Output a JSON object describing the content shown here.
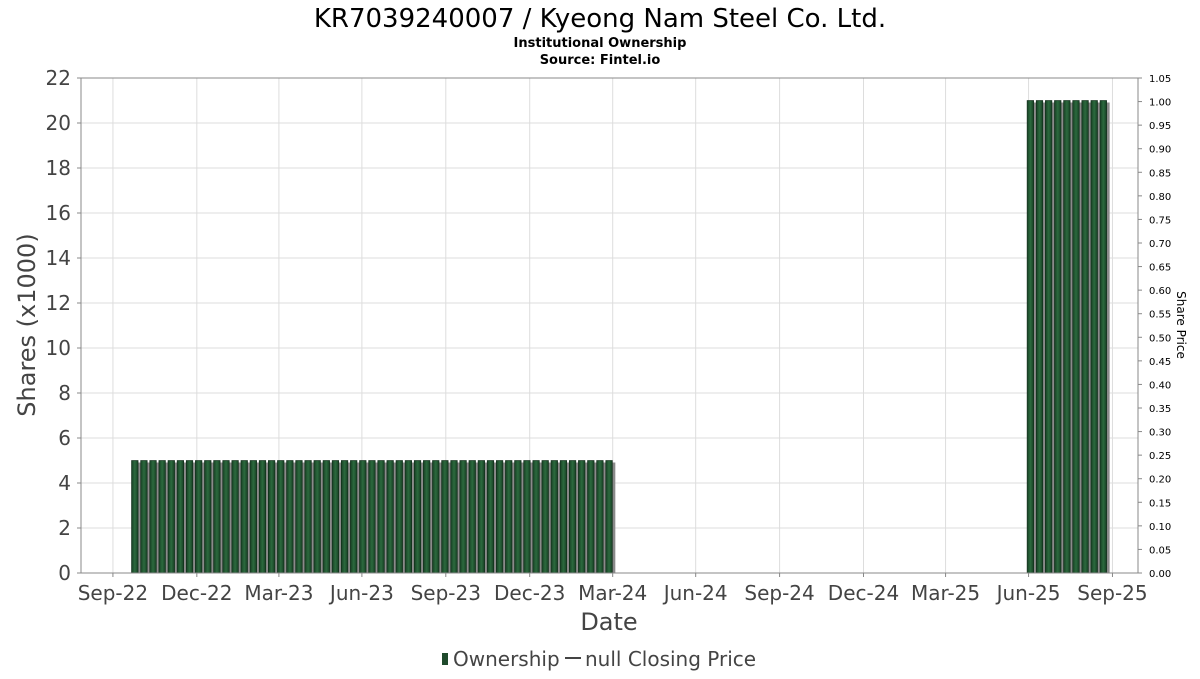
{
  "chart_data": {
    "type": "bar",
    "title": "KR7039240007 / Kyeong Nam Steel Co. Ltd.",
    "subtitle_lines": [
      "Institutional Ownership",
      "Source: Fintel.io"
    ],
    "xlabel": "Date",
    "ylabel": "Shares (x1000)",
    "ylabel_right": "Share Price",
    "ylim": [
      0,
      22
    ],
    "ylim_right": [
      0,
      1.05
    ],
    "yticks": [
      "0",
      "2",
      "4",
      "6",
      "8",
      "10",
      "12",
      "14",
      "16",
      "18",
      "20",
      "22"
    ],
    "yticks_right": [
      "0.00",
      "0.05",
      "0.10",
      "0.15",
      "0.20",
      "0.25",
      "0.30",
      "0.35",
      "0.40",
      "0.45",
      "0.50",
      "0.55",
      "0.60",
      "0.65",
      "0.70",
      "0.75",
      "0.80",
      "0.85",
      "0.90",
      "0.95",
      "1.00",
      "1.05"
    ],
    "xticks": [
      "Sep-22",
      "Dec-22",
      "Mar-23",
      "Jun-23",
      "Sep-23",
      "Dec-23",
      "Mar-24",
      "Jun-24",
      "Sep-24",
      "Dec-24",
      "Mar-25",
      "Jun-25",
      "Sep-25"
    ],
    "x_dates": [
      "2022-09-30",
      "2022-12-31",
      "2023-03-31",
      "2023-06-30",
      "2023-09-30",
      "2023-12-31",
      "2024-03-31",
      "2024-06-30",
      "2024-09-30",
      "2024-12-31",
      "2025-03-31",
      "2025-06-30",
      "2025-09-30"
    ],
    "x_range": [
      "2022-08-26",
      "2025-10-28"
    ],
    "grid": true,
    "legend_position": "bottom",
    "series": [
      {
        "name": "Ownership",
        "color": "#1f4a2c",
        "points": [
          {
            "date": "2022-10-24",
            "value": 5
          },
          {
            "date": "2022-11-03",
            "value": 5
          },
          {
            "date": "2022-11-13",
            "value": 5
          },
          {
            "date": "2022-11-23",
            "value": 5
          },
          {
            "date": "2022-12-03",
            "value": 5
          },
          {
            "date": "2022-12-13",
            "value": 5
          },
          {
            "date": "2022-12-23",
            "value": 5
          },
          {
            "date": "2023-01-02",
            "value": 5
          },
          {
            "date": "2023-01-12",
            "value": 5
          },
          {
            "date": "2023-01-22",
            "value": 5
          },
          {
            "date": "2023-02-01",
            "value": 5
          },
          {
            "date": "2023-02-11",
            "value": 5
          },
          {
            "date": "2023-02-21",
            "value": 5
          },
          {
            "date": "2023-03-03",
            "value": 5
          },
          {
            "date": "2023-03-13",
            "value": 5
          },
          {
            "date": "2023-03-23",
            "value": 5
          },
          {
            "date": "2023-04-02",
            "value": 5
          },
          {
            "date": "2023-04-12",
            "value": 5
          },
          {
            "date": "2023-04-22",
            "value": 5
          },
          {
            "date": "2023-05-02",
            "value": 5
          },
          {
            "date": "2023-05-12",
            "value": 5
          },
          {
            "date": "2023-05-22",
            "value": 5
          },
          {
            "date": "2023-06-01",
            "value": 5
          },
          {
            "date": "2023-06-11",
            "value": 5
          },
          {
            "date": "2023-06-21",
            "value": 5
          },
          {
            "date": "2023-07-01",
            "value": 5
          },
          {
            "date": "2023-07-11",
            "value": 5
          },
          {
            "date": "2023-07-21",
            "value": 5
          },
          {
            "date": "2023-07-31",
            "value": 5
          },
          {
            "date": "2023-08-10",
            "value": 5
          },
          {
            "date": "2023-08-20",
            "value": 5
          },
          {
            "date": "2023-08-30",
            "value": 5
          },
          {
            "date": "2023-09-09",
            "value": 5
          },
          {
            "date": "2023-09-19",
            "value": 5
          },
          {
            "date": "2023-09-29",
            "value": 5
          },
          {
            "date": "2023-10-09",
            "value": 5
          },
          {
            "date": "2023-10-19",
            "value": 5
          },
          {
            "date": "2023-10-29",
            "value": 5
          },
          {
            "date": "2023-11-08",
            "value": 5
          },
          {
            "date": "2023-11-18",
            "value": 5
          },
          {
            "date": "2023-11-28",
            "value": 5
          },
          {
            "date": "2023-12-08",
            "value": 5
          },
          {
            "date": "2023-12-18",
            "value": 5
          },
          {
            "date": "2023-12-28",
            "value": 5
          },
          {
            "date": "2024-01-07",
            "value": 5
          },
          {
            "date": "2024-01-17",
            "value": 5
          },
          {
            "date": "2024-01-27",
            "value": 5
          },
          {
            "date": "2024-02-06",
            "value": 5
          },
          {
            "date": "2024-02-16",
            "value": 5
          },
          {
            "date": "2024-02-26",
            "value": 5
          },
          {
            "date": "2024-03-07",
            "value": 5
          },
          {
            "date": "2024-03-17",
            "value": 5
          },
          {
            "date": "2024-03-27",
            "value": 5
          },
          {
            "date": "2025-07-02",
            "value": 21
          },
          {
            "date": "2025-07-12",
            "value": 21
          },
          {
            "date": "2025-07-22",
            "value": 21
          },
          {
            "date": "2025-08-01",
            "value": 21
          },
          {
            "date": "2025-08-11",
            "value": 21
          },
          {
            "date": "2025-08-21",
            "value": 21
          },
          {
            "date": "2025-08-31",
            "value": 21
          },
          {
            "date": "2025-09-10",
            "value": 21
          },
          {
            "date": "2025-09-20",
            "value": 21
          }
        ]
      },
      {
        "name": "null Closing Price",
        "color": "#444444",
        "points": []
      }
    ]
  }
}
